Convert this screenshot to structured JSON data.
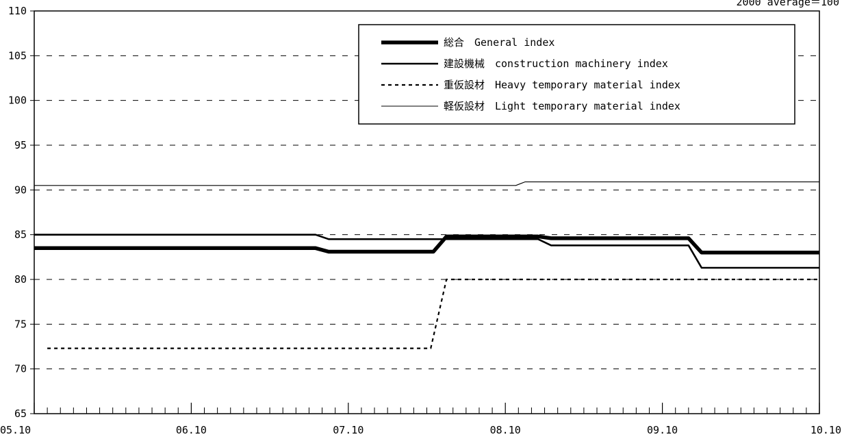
{
  "chart_data": {
    "type": "line",
    "note": "2000 average＝100",
    "ylim": [
      65,
      110
    ],
    "y_ticks": [
      65,
      70,
      75,
      80,
      85,
      90,
      95,
      100,
      105,
      110
    ],
    "x_range": [
      0,
      60
    ],
    "x_ticks": [
      {
        "x": 0,
        "label": "05.10"
      },
      {
        "x": 12,
        "label": "06.10"
      },
      {
        "x": 24,
        "label": "07.10"
      },
      {
        "x": 36,
        "label": "08.10"
      },
      {
        "x": 48,
        "label": "09.10"
      },
      {
        "x": 60,
        "label": "10.10"
      }
    ],
    "grid": true,
    "legend_position": "top-right",
    "series": [
      {
        "name": "総合　General index",
        "style": "thick",
        "points": [
          [
            0,
            83.5
          ],
          [
            21.5,
            83.5
          ],
          [
            22.5,
            83.1
          ],
          [
            30.5,
            83.1
          ],
          [
            31.5,
            84.8
          ],
          [
            38.5,
            84.8
          ],
          [
            39.5,
            84.6
          ],
          [
            50,
            84.6
          ],
          [
            51,
            83.0
          ],
          [
            60,
            83.0
          ]
        ]
      },
      {
        "name": "建設機械　construction machinery index",
        "style": "medium",
        "points": [
          [
            0,
            85.0
          ],
          [
            21.5,
            85.0
          ],
          [
            22.5,
            84.5
          ],
          [
            31.5,
            84.5
          ],
          [
            38.5,
            84.5
          ],
          [
            39.5,
            83.8
          ],
          [
            50,
            83.8
          ],
          [
            51,
            81.3
          ],
          [
            60,
            81.3
          ]
        ]
      },
      {
        "name": "重仮設材　Heavy temporary material index",
        "style": "dotted",
        "points": [
          [
            1,
            72.3
          ],
          [
            30.3,
            72.3
          ],
          [
            31.5,
            80.0
          ],
          [
            60,
            80.0
          ]
        ]
      },
      {
        "name": "軽仮設材　Light temporary material index",
        "style": "thin",
        "points": [
          [
            0,
            90.5
          ],
          [
            36.8,
            90.5
          ],
          [
            37.5,
            90.9
          ],
          [
            60,
            90.9
          ]
        ]
      }
    ]
  }
}
